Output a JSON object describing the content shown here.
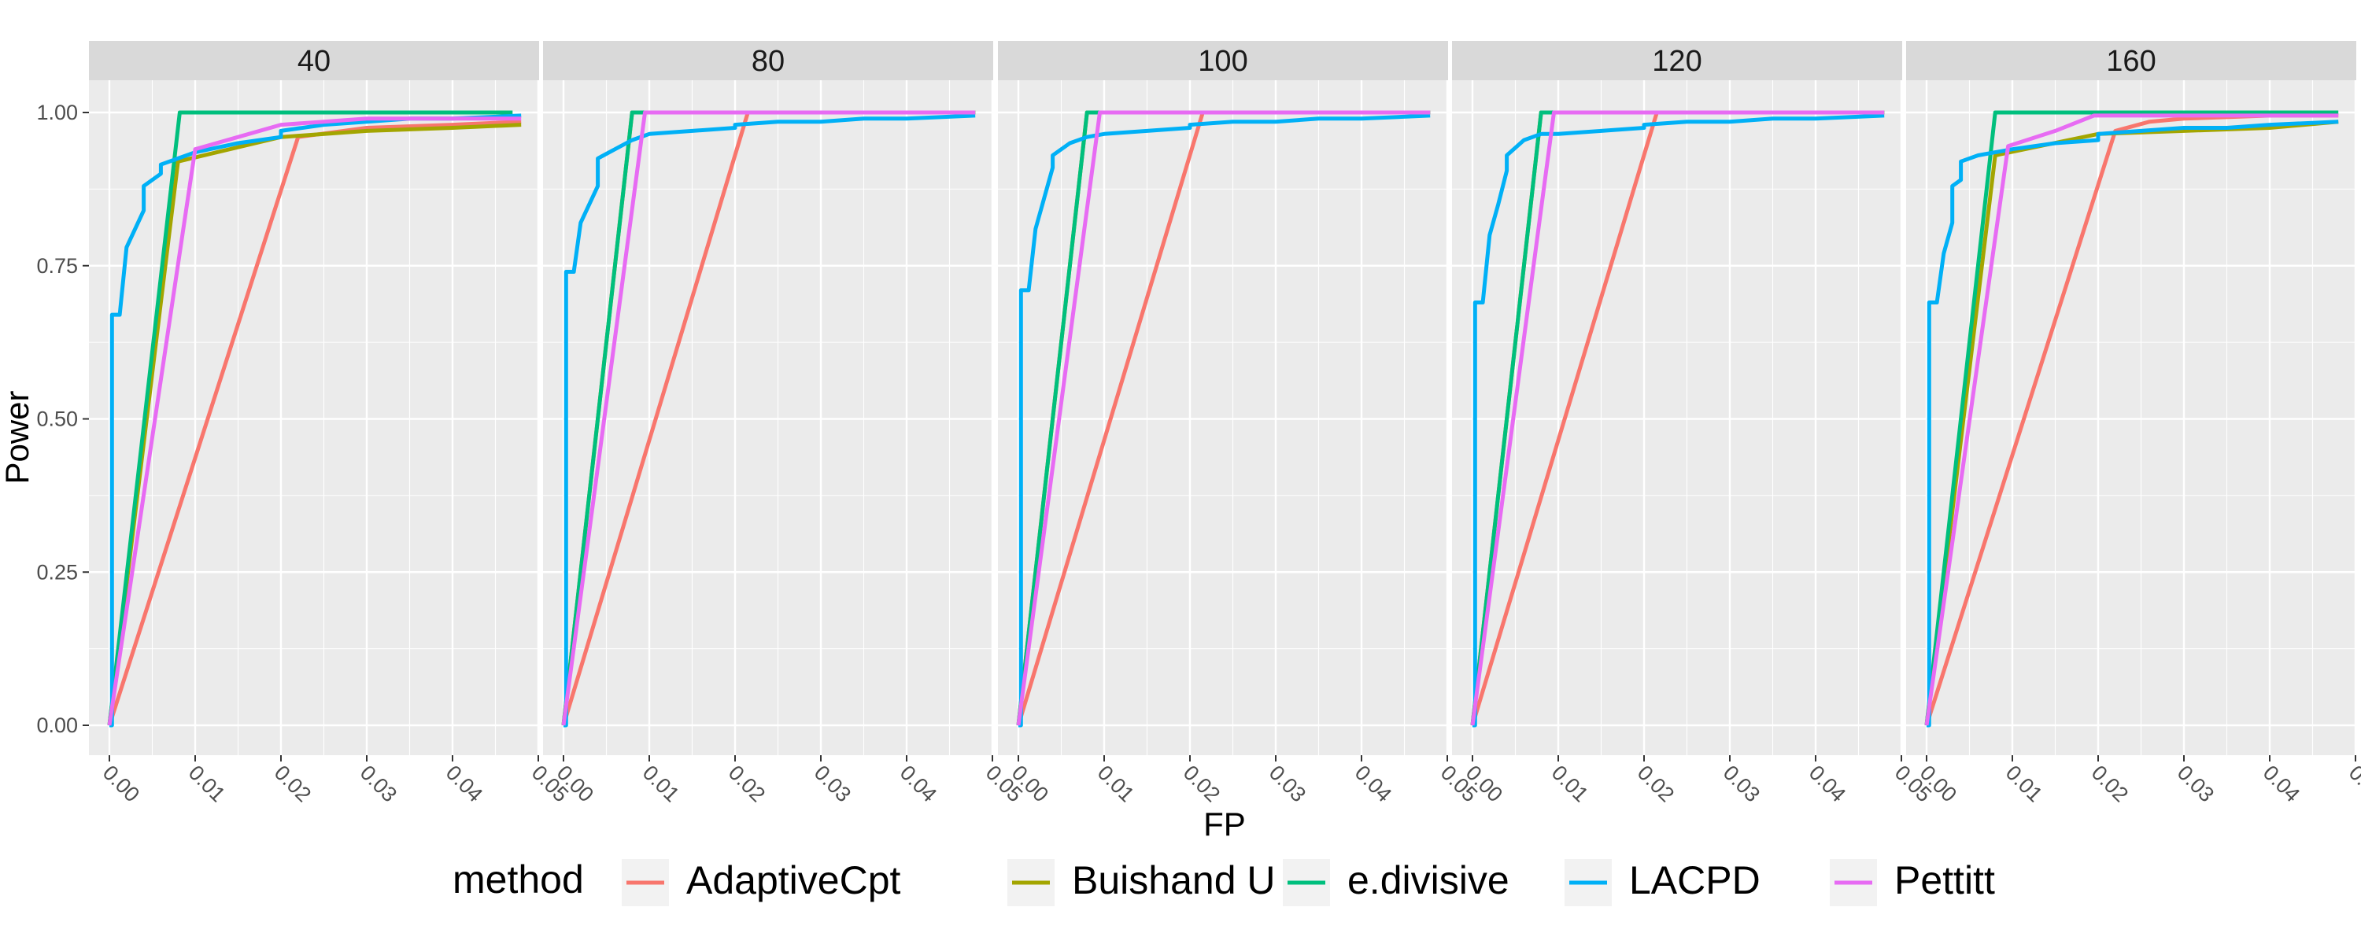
{
  "chart_data": {
    "type": "line",
    "facet_labels": [
      "40",
      "80",
      "100",
      "120",
      "160"
    ],
    "xlabel": "FP",
    "ylabel": "Power",
    "xlim": [
      0,
      0.05
    ],
    "ylim": [
      0,
      1
    ],
    "x_ticks": [
      "0.00",
      "0.01",
      "0.02",
      "0.03",
      "0.04",
      "0.05"
    ],
    "y_ticks": [
      "0.00",
      "0.25",
      "0.50",
      "0.75",
      "1.00"
    ],
    "grid": true,
    "legend": {
      "title": "method",
      "position": "bottom",
      "entries": [
        "AdaptiveCpt",
        "Buishand U",
        "e.divisive",
        "LACPD",
        "Pettitt"
      ]
    },
    "colors": {
      "AdaptiveCpt": "#F8766D",
      "Buishand U": "#A3A500",
      "e.divisive": "#00BF7D",
      "LACPD": "#00B0F6",
      "Pettitt": "#E76BF3"
    },
    "panels": [
      {
        "facet": "40",
        "series": [
          {
            "name": "AdaptiveCpt",
            "points": [
              [
                0,
                0
              ],
              [
                0.022,
                0.96
              ],
              [
                0.03,
                0.975
              ],
              [
                0.04,
                0.98
              ],
              [
                0.048,
                0.985
              ]
            ]
          },
          {
            "name": "Buishand U",
            "points": [
              [
                0,
                0
              ],
              [
                0.008,
                0.92
              ],
              [
                0.02,
                0.96
              ],
              [
                0.03,
                0.97
              ],
              [
                0.04,
                0.975
              ],
              [
                0.048,
                0.98
              ]
            ]
          },
          {
            "name": "e.divisive",
            "points": [
              [
                0,
                0
              ],
              [
                0.0082,
                1.0
              ],
              [
                0.047,
                1.0
              ]
            ]
          },
          {
            "name": "LACPD",
            "points": [
              [
                0,
                0
              ],
              [
                0.0003,
                0
              ],
              [
                0.0003,
                0.67
              ],
              [
                0.0012,
                0.67
              ],
              [
                0.002,
                0.78
              ],
              [
                0.004,
                0.84
              ],
              [
                0.004,
                0.88
              ],
              [
                0.006,
                0.9
              ],
              [
                0.006,
                0.915
              ],
              [
                0.008,
                0.925
              ],
              [
                0.01,
                0.935
              ],
              [
                0.015,
                0.95
              ],
              [
                0.02,
                0.96
              ],
              [
                0.02,
                0.97
              ],
              [
                0.025,
                0.98
              ],
              [
                0.03,
                0.985
              ],
              [
                0.035,
                0.99
              ],
              [
                0.04,
                0.99
              ],
              [
                0.048,
                0.995
              ]
            ]
          },
          {
            "name": "Pettitt",
            "points": [
              [
                0,
                0
              ],
              [
                0.01,
                0.94
              ],
              [
                0.015,
                0.96
              ],
              [
                0.02,
                0.98
              ],
              [
                0.025,
                0.985
              ],
              [
                0.03,
                0.99
              ],
              [
                0.048,
                0.99
              ]
            ]
          }
        ]
      },
      {
        "facet": "80",
        "series": [
          {
            "name": "AdaptiveCpt",
            "points": [
              [
                0,
                0
              ],
              [
                0.0215,
                1.0
              ],
              [
                0.048,
                1.0
              ]
            ]
          },
          {
            "name": "Buishand U",
            "points": [
              [
                0,
                0
              ],
              [
                0.008,
                1.0
              ],
              [
                0.048,
                1.0
              ]
            ]
          },
          {
            "name": "e.divisive",
            "points": [
              [
                0,
                0
              ],
              [
                0.008,
                1.0
              ],
              [
                0.048,
                1.0
              ]
            ]
          },
          {
            "name": "LACPD",
            "points": [
              [
                0,
                0
              ],
              [
                0.0003,
                0
              ],
              [
                0.0003,
                0.74
              ],
              [
                0.0012,
                0.74
              ],
              [
                0.002,
                0.82
              ],
              [
                0.004,
                0.88
              ],
              [
                0.004,
                0.925
              ],
              [
                0.006,
                0.94
              ],
              [
                0.008,
                0.955
              ],
              [
                0.01,
                0.965
              ],
              [
                0.015,
                0.97
              ],
              [
                0.02,
                0.975
              ],
              [
                0.02,
                0.98
              ],
              [
                0.025,
                0.985
              ],
              [
                0.03,
                0.985
              ],
              [
                0.035,
                0.99
              ],
              [
                0.04,
                0.99
              ],
              [
                0.048,
                0.995
              ]
            ]
          },
          {
            "name": "Pettitt",
            "points": [
              [
                0,
                0
              ],
              [
                0.0095,
                1.0
              ],
              [
                0.048,
                1.0
              ]
            ]
          }
        ]
      },
      {
        "facet": "100",
        "series": [
          {
            "name": "AdaptiveCpt",
            "points": [
              [
                0,
                0
              ],
              [
                0.0215,
                1.0
              ],
              [
                0.048,
                1.0
              ]
            ]
          },
          {
            "name": "Buishand U",
            "points": [
              [
                0,
                0
              ],
              [
                0.008,
                1.0
              ],
              [
                0.048,
                1.0
              ]
            ]
          },
          {
            "name": "e.divisive",
            "points": [
              [
                0,
                0
              ],
              [
                0.008,
                1.0
              ],
              [
                0.048,
                1.0
              ]
            ]
          },
          {
            "name": "LACPD",
            "points": [
              [
                0,
                0
              ],
              [
                0.0003,
                0
              ],
              [
                0.0003,
                0.71
              ],
              [
                0.0012,
                0.71
              ],
              [
                0.002,
                0.81
              ],
              [
                0.003,
                0.86
              ],
              [
                0.004,
                0.91
              ],
              [
                0.004,
                0.93
              ],
              [
                0.006,
                0.95
              ],
              [
                0.008,
                0.96
              ],
              [
                0.01,
                0.965
              ],
              [
                0.015,
                0.97
              ],
              [
                0.02,
                0.975
              ],
              [
                0.02,
                0.98
              ],
              [
                0.025,
                0.985
              ],
              [
                0.03,
                0.985
              ],
              [
                0.035,
                0.99
              ],
              [
                0.04,
                0.99
              ],
              [
                0.048,
                0.995
              ]
            ]
          },
          {
            "name": "Pettitt",
            "points": [
              [
                0,
                0
              ],
              [
                0.0095,
                1.0
              ],
              [
                0.048,
                1.0
              ]
            ]
          }
        ]
      },
      {
        "facet": "120",
        "series": [
          {
            "name": "AdaptiveCpt",
            "points": [
              [
                0,
                0
              ],
              [
                0.0215,
                1.0
              ],
              [
                0.048,
                1.0
              ]
            ]
          },
          {
            "name": "Buishand U",
            "points": [
              [
                0,
                0
              ],
              [
                0.008,
                1.0
              ],
              [
                0.048,
                1.0
              ]
            ]
          },
          {
            "name": "e.divisive",
            "points": [
              [
                0,
                0
              ],
              [
                0.008,
                1.0
              ],
              [
                0.048,
                1.0
              ]
            ]
          },
          {
            "name": "LACPD",
            "points": [
              [
                0,
                0
              ],
              [
                0.0003,
                0
              ],
              [
                0.0003,
                0.69
              ],
              [
                0.0012,
                0.69
              ],
              [
                0.002,
                0.8
              ],
              [
                0.003,
                0.85
              ],
              [
                0.004,
                0.905
              ],
              [
                0.004,
                0.93
              ],
              [
                0.006,
                0.955
              ],
              [
                0.008,
                0.965
              ],
              [
                0.01,
                0.965
              ],
              [
                0.015,
                0.97
              ],
              [
                0.02,
                0.975
              ],
              [
                0.02,
                0.98
              ],
              [
                0.025,
                0.985
              ],
              [
                0.03,
                0.985
              ],
              [
                0.035,
                0.99
              ],
              [
                0.04,
                0.99
              ],
              [
                0.048,
                0.995
              ]
            ]
          },
          {
            "name": "Pettitt",
            "points": [
              [
                0,
                0
              ],
              [
                0.0095,
                1.0
              ],
              [
                0.048,
                1.0
              ]
            ]
          }
        ]
      },
      {
        "facet": "160",
        "series": [
          {
            "name": "AdaptiveCpt",
            "points": [
              [
                0,
                0
              ],
              [
                0.022,
                0.97
              ],
              [
                0.026,
                0.985
              ],
              [
                0.03,
                0.99
              ],
              [
                0.04,
                0.995
              ],
              [
                0.048,
                0.995
              ]
            ]
          },
          {
            "name": "Buishand U",
            "points": [
              [
                0,
                0
              ],
              [
                0.008,
                0.93
              ],
              [
                0.02,
                0.965
              ],
              [
                0.03,
                0.97
              ],
              [
                0.04,
                0.975
              ],
              [
                0.048,
                0.985
              ]
            ]
          },
          {
            "name": "e.divisive",
            "points": [
              [
                0,
                0
              ],
              [
                0.008,
                1.0
              ],
              [
                0.048,
                1.0
              ]
            ]
          },
          {
            "name": "LACPD",
            "points": [
              [
                0,
                0
              ],
              [
                0.0003,
                0
              ],
              [
                0.0003,
                0.69
              ],
              [
                0.0012,
                0.69
              ],
              [
                0.002,
                0.77
              ],
              [
                0.003,
                0.82
              ],
              [
                0.003,
                0.88
              ],
              [
                0.004,
                0.89
              ],
              [
                0.004,
                0.92
              ],
              [
                0.006,
                0.93
              ],
              [
                0.008,
                0.935
              ],
              [
                0.01,
                0.94
              ],
              [
                0.015,
                0.95
              ],
              [
                0.02,
                0.955
              ],
              [
                0.02,
                0.965
              ],
              [
                0.025,
                0.97
              ],
              [
                0.03,
                0.975
              ],
              [
                0.035,
                0.975
              ],
              [
                0.04,
                0.98
              ],
              [
                0.048,
                0.985
              ]
            ]
          },
          {
            "name": "Pettitt",
            "points": [
              [
                0,
                0
              ],
              [
                0.0095,
                0.945
              ],
              [
                0.015,
                0.97
              ],
              [
                0.0195,
                0.995
              ],
              [
                0.03,
                0.995
              ],
              [
                0.048,
                0.995
              ]
            ]
          }
        ]
      }
    ]
  }
}
